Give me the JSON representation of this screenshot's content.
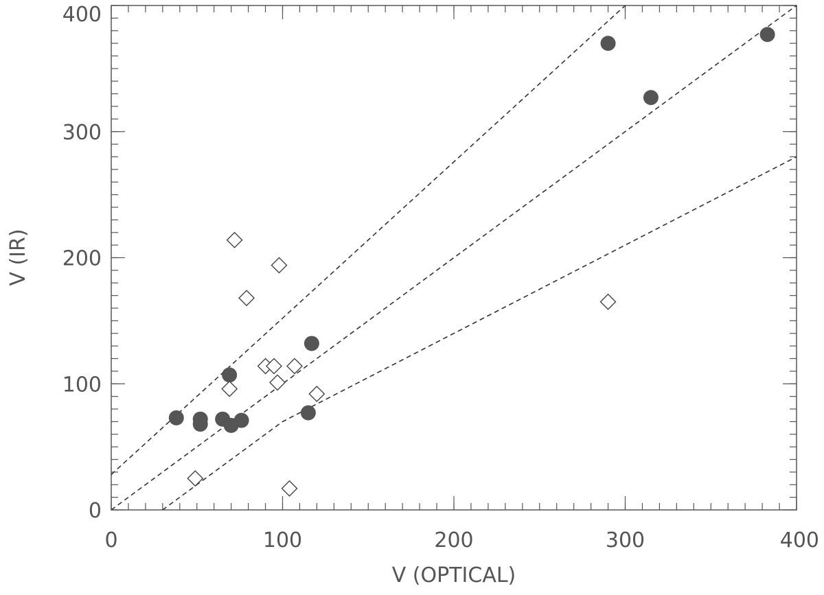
{
  "chart_data": {
    "type": "scatter",
    "title": "",
    "xlabel": "V (OPTICAL)",
    "ylabel": "V (IR)",
    "xlim": [
      0,
      400
    ],
    "ylim": [
      0,
      400
    ],
    "xticks": [
      0,
      100,
      200,
      300,
      400
    ],
    "yticks": [
      0,
      100,
      200,
      300,
      400
    ],
    "grid": false,
    "series": [
      {
        "marker": "filled-circle",
        "color": "#555555",
        "points": [
          {
            "x": 38,
            "y": 73
          },
          {
            "x": 52,
            "y": 72
          },
          {
            "x": 52,
            "y": 68
          },
          {
            "x": 65,
            "y": 72
          },
          {
            "x": 69,
            "y": 107
          },
          {
            "x": 70,
            "y": 67
          },
          {
            "x": 76,
            "y": 71
          },
          {
            "x": 115,
            "y": 77
          },
          {
            "x": 117,
            "y": 132
          },
          {
            "x": 290,
            "y": 370
          },
          {
            "x": 315,
            "y": 327
          },
          {
            "x": 383,
            "y": 377
          }
        ]
      },
      {
        "marker": "open-diamond",
        "color": "#444444",
        "points": [
          {
            "x": 49,
            "y": 25
          },
          {
            "x": 69,
            "y": 96
          },
          {
            "x": 72,
            "y": 214
          },
          {
            "x": 79,
            "y": 168
          },
          {
            "x": 90,
            "y": 114
          },
          {
            "x": 95,
            "y": 114
          },
          {
            "x": 97,
            "y": 101
          },
          {
            "x": 98,
            "y": 194
          },
          {
            "x": 104,
            "y": 17
          },
          {
            "x": 107,
            "y": 114
          },
          {
            "x": 120,
            "y": 92
          },
          {
            "x": 290,
            "y": 165
          }
        ]
      }
    ],
    "lines": [
      {
        "style": "dashed",
        "points": [
          [
            0,
            28
          ],
          [
            300,
            400
          ]
        ]
      },
      {
        "style": "dashed",
        "points": [
          [
            0,
            0
          ],
          [
            400,
            400
          ]
        ]
      },
      {
        "style": "dashed",
        "points": [
          [
            30,
            0
          ],
          [
            100,
            70
          ],
          [
            400,
            280
          ]
        ]
      }
    ]
  }
}
